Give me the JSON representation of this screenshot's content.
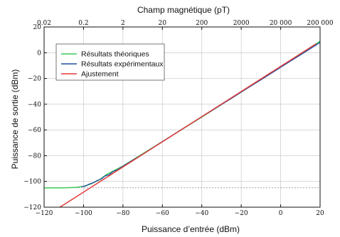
{
  "chart_data": {
    "type": "line",
    "top_axis_label": "Champ magnétique (pT)",
    "top_ticks": [
      "0.02",
      "0.2",
      "2",
      "20",
      "200",
      "2000",
      "20 000",
      "200 000"
    ],
    "xlabel": "Puissance d’entrée (dBm)",
    "ylabel": "Puissance de sortie (dBm)",
    "xlim": [
      -120,
      20
    ],
    "ylim": [
      -120,
      20
    ],
    "x_ticks": [
      -120,
      -100,
      -80,
      -60,
      -40,
      -20,
      0,
      20
    ],
    "y_ticks": [
      -120,
      -100,
      -80,
      -60,
      -40,
      -20,
      0,
      20
    ],
    "x_tick_labels": [
      "−120",
      "−100",
      "−80",
      "−60",
      "−40",
      "−20",
      "0",
      "20"
    ],
    "y_tick_labels": [
      "−120",
      "−100",
      "−80",
      "−60",
      "−40",
      "−20",
      "0",
      "20"
    ],
    "grid": true,
    "reference_line_y": -105,
    "legend_position": "top-left",
    "series": [
      {
        "name": "Résultats théoriques",
        "color": "#3cc85a",
        "x": [
          -120,
          -110,
          -104,
          -100,
          -96,
          -92,
          -88,
          -80,
          -60,
          -40,
          -20,
          0,
          20
        ],
        "y": [
          -105,
          -105,
          -104.6,
          -103.8,
          -101.8,
          -98.7,
          -94.3,
          -88,
          -69,
          -50,
          -30.5,
          -11,
          9
        ]
      },
      {
        "name": "Résultats expérimentaux",
        "color": "#1f4fa0",
        "x": [
          -101,
          -99,
          -97,
          -95,
          -93,
          -91,
          -89,
          -87,
          -85,
          -83,
          -80,
          -75,
          -70,
          -65,
          -60,
          -55,
          -50,
          -45,
          -40,
          -35,
          -30,
          -25,
          -20,
          -15,
          -10,
          -5,
          0,
          5,
          10,
          15,
          20
        ],
        "y": [
          -104,
          -103.6,
          -102,
          -101,
          -99.2,
          -98.1,
          -95.7,
          -94.8,
          -92.3,
          -91.2,
          -88.2,
          -83.5,
          -79,
          -74,
          -69,
          -64.2,
          -59.3,
          -54.5,
          -49.8,
          -45,
          -40.2,
          -35.5,
          -30.6,
          -25.8,
          -21,
          -16.2,
          -11.3,
          -6.5,
          -1.7,
          3.1,
          8
        ]
      },
      {
        "name": "Ajustement",
        "color": "#e23a3a",
        "x": [
          -112,
          18
        ],
        "y": [
          -120,
          7
        ]
      }
    ]
  }
}
